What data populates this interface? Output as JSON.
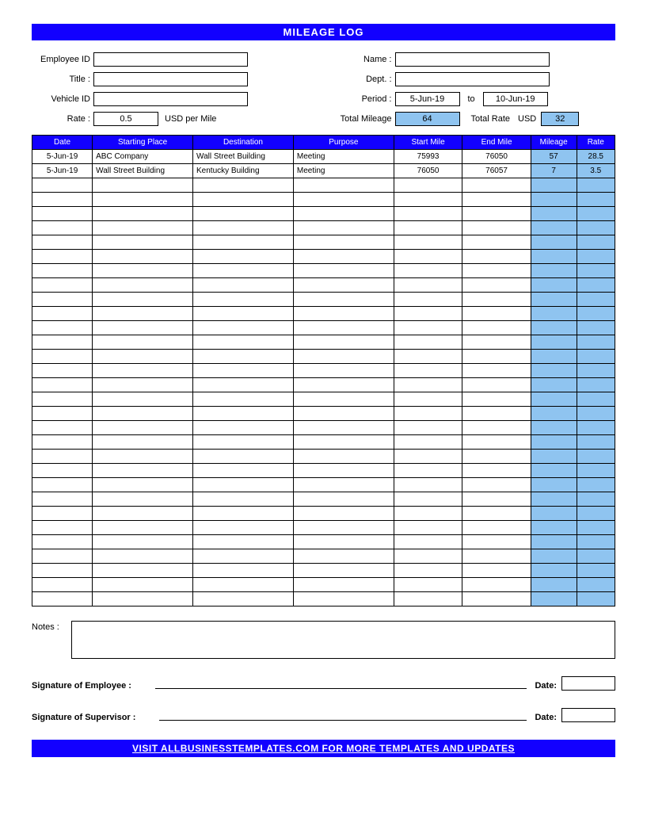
{
  "title": "MILEAGE LOG",
  "header": {
    "employee_id_label": "Employee ID",
    "employee_id_value": "",
    "name_label": "Name :",
    "name_value": "",
    "title_label": "Title :",
    "title_value": "",
    "dept_label": "Dept. :",
    "dept_value": "",
    "vehicle_id_label": "Vehicle ID",
    "vehicle_id_value": "",
    "period_label": "Period :",
    "period_from": "5-Jun-19",
    "period_to_label": "to",
    "period_to": "10-Jun-19",
    "rate_label": "Rate :",
    "rate_value": "0.5",
    "rate_unit": "USD per Mile",
    "total_mileage_label": "Total Mileage",
    "total_mileage_value": "64",
    "total_rate_label": "Total Rate",
    "total_rate_currency": "USD",
    "total_rate_value": "32"
  },
  "table": {
    "columns": [
      "Date",
      "Starting Place",
      "Destination",
      "Purpose",
      "Start Mile",
      "End Mile",
      "Mileage",
      "Rate"
    ],
    "rows": [
      {
        "date": "5-Jun-19",
        "start": "ABC Company",
        "dest": "Wall Street Building",
        "purpose": "Meeting",
        "smile": "75993",
        "emile": "76050",
        "mileage": "57",
        "rate": "28.5"
      },
      {
        "date": "5-Jun-19",
        "start": "Wall Street Building",
        "dest": "Kentucky Building",
        "purpose": "Meeting",
        "smile": "76050",
        "emile": "76057",
        "mileage": "7",
        "rate": "3.5"
      }
    ],
    "empty_rows": 30,
    "colors": {
      "header_bg": "#1200ff",
      "header_text": "#ffffff",
      "calc_bg": "#8fc4f0",
      "border": "#000000"
    }
  },
  "notes": {
    "label": "Notes :",
    "value": ""
  },
  "signatures": {
    "employee_label": "Signature of Employee :",
    "supervisor_label": "Signature of Supervisor :",
    "date_label": "Date:"
  },
  "footer": "VISIT ALLBUSINESSTEMPLATES.COM FOR MORE TEMPLATES AND UPDATES"
}
